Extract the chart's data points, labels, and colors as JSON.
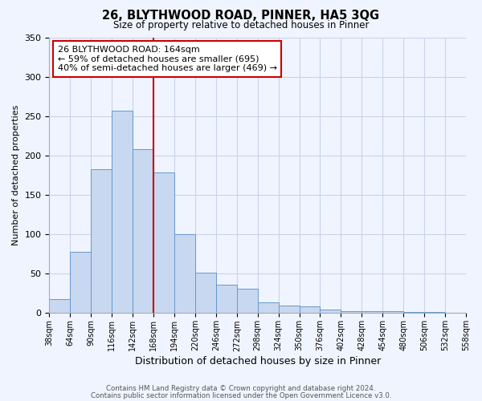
{
  "title": "26, BLYTHWOOD ROAD, PINNER, HA5 3QG",
  "subtitle": "Size of property relative to detached houses in Pinner",
  "xlabel": "Distribution of detached houses by size in Pinner",
  "ylabel": "Number of detached properties",
  "bin_labels": [
    "38sqm",
    "64sqm",
    "90sqm",
    "116sqm",
    "142sqm",
    "168sqm",
    "194sqm",
    "220sqm",
    "246sqm",
    "272sqm",
    "298sqm",
    "324sqm",
    "350sqm",
    "376sqm",
    "402sqm",
    "428sqm",
    "454sqm",
    "480sqm",
    "506sqm",
    "532sqm",
    "558sqm"
  ],
  "bar_values": [
    18,
    78,
    183,
    257,
    208,
    179,
    100,
    51,
    36,
    31,
    14,
    10,
    9,
    5,
    2,
    2,
    2,
    1,
    1,
    0
  ],
  "bar_color": "#c8d8f0",
  "bar_edge_color": "#6699cc",
  "vline_x": 5,
  "vline_color": "#cc0000",
  "ylim": [
    0,
    350
  ],
  "yticks": [
    0,
    50,
    100,
    150,
    200,
    250,
    300,
    350
  ],
  "annotation_title": "26 BLYTHWOOD ROAD: 164sqm",
  "annotation_line1": "← 59% of detached houses are smaller (695)",
  "annotation_line2": "40% of semi-detached houses are larger (469) →",
  "footnote1": "Contains HM Land Registry data © Crown copyright and database right 2024.",
  "footnote2": "Contains public sector information licensed under the Open Government Licence v3.0.",
  "background_color": "#f0f4ff",
  "grid_color": "#c8d4e8"
}
